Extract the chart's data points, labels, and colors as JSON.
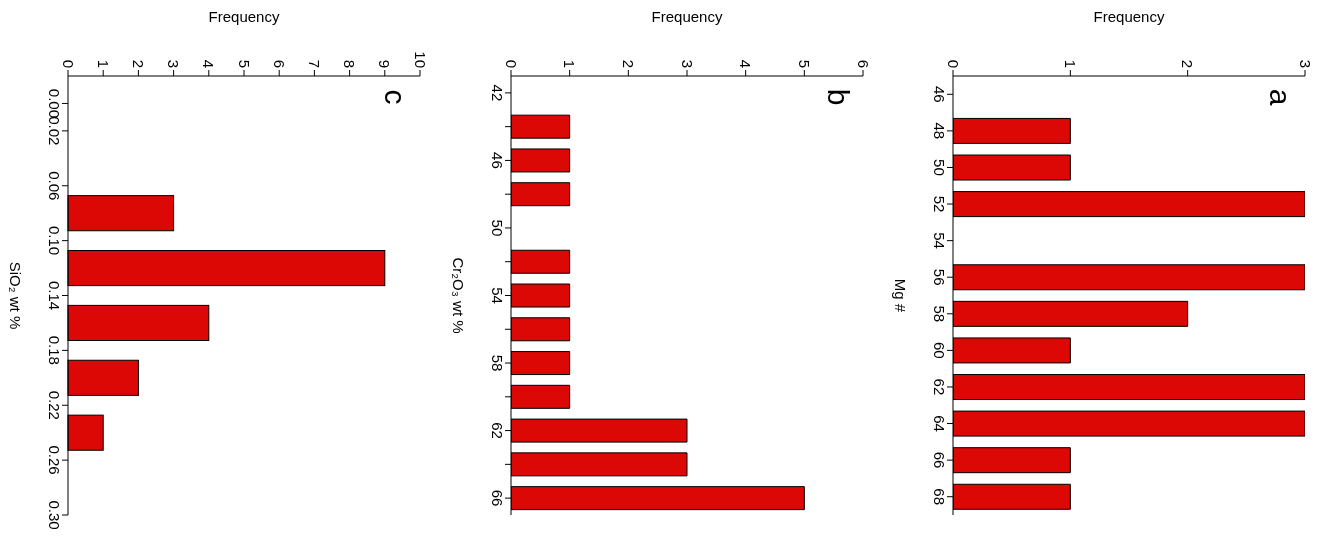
{
  "chart_data": [
    {
      "type": "histogram",
      "orientation": "horizontal",
      "ylabel": "SiO₂ wt %",
      "xlabel": "Frequency",
      "annotations": [
        "c"
      ],
      "color": "#dc0806",
      "bins": [
        0.06,
        0.1,
        0.14,
        0.18,
        0.22,
        0.26
      ],
      "values": [
        3,
        9,
        4,
        2,
        1
      ],
      "ylim": [
        0.3,
        -0.02
      ],
      "yticks": [
        {
          "value": 0,
          "label": "0.00"
        },
        {
          "value": 0.02,
          "label": "0.02"
        },
        {
          "value": 0.06,
          "label": "0.06"
        },
        {
          "value": 0.1,
          "label": "0.10"
        },
        {
          "value": 0.14,
          "label": "0.14"
        },
        {
          "value": 0.18,
          "label": "0.18"
        },
        {
          "value": 0.22,
          "label": "0.22"
        },
        {
          "value": 0.26,
          "label": "0.26"
        },
        {
          "value": 0.3,
          "label": "0.30"
        }
      ],
      "xlim": [
        0,
        10
      ],
      "xticks": [
        0,
        1,
        2,
        3,
        4,
        5,
        6,
        7,
        8,
        9,
        10
      ]
    },
    {
      "type": "bar",
      "orientation": "horizontal",
      "ylabel": "Cr₂O₃ wt %",
      "xlabel": "Frequency",
      "annotations": [
        "b"
      ],
      "color": "#dc0806",
      "categories": [
        "42",
        null,
        "46",
        null,
        "50",
        null,
        "54",
        null,
        "58",
        null,
        "62",
        null,
        "66"
      ],
      "values": [
        0,
        1,
        1,
        1,
        0,
        1,
        1,
        1,
        1,
        1,
        3,
        3,
        5
      ],
      "xlim": [
        0,
        6
      ],
      "xticks": [
        0,
        1,
        2,
        3,
        4,
        5,
        6
      ]
    },
    {
      "type": "bar",
      "orientation": "horizontal",
      "ylabel": "Mg #",
      "xlabel": "Frequency",
      "annotations": [
        "a"
      ],
      "color": "#dc0806",
      "categories": [
        "46",
        "48",
        "50",
        "52",
        "54",
        "56",
        "58",
        "60",
        "62",
        "64",
        "66",
        "68"
      ],
      "values": [
        0,
        1,
        1,
        3,
        0,
        3,
        2,
        1,
        3,
        3,
        1,
        1
      ],
      "xlim": [
        0,
        3
      ],
      "xticks": [
        0,
        1,
        2,
        3
      ]
    }
  ]
}
